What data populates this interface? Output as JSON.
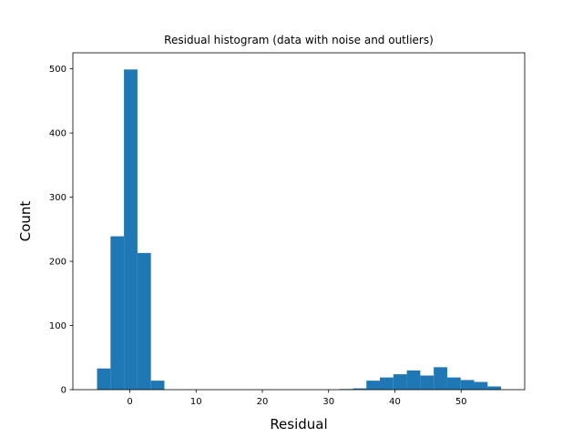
{
  "chart_data": {
    "type": "bar",
    "subtype": "histogram",
    "title": "Residual histogram (data with noise and outliers)",
    "xlabel": "Residual",
    "ylabel": "Count",
    "xlim": [
      -8.6,
      59.6
    ],
    "ylim": [
      0,
      525
    ],
    "xticks": [
      0,
      10,
      20,
      30,
      40,
      50
    ],
    "yticks": [
      0,
      100,
      200,
      300,
      400,
      500
    ],
    "grid": false,
    "color": "#1f77b4",
    "bin_edges": [
      -4.952,
      -2.919,
      -0.886,
      1.147,
      3.18,
      5.213,
      7.246,
      9.279,
      11.312,
      13.345,
      15.378,
      17.411,
      19.444,
      21.477,
      23.51,
      25.543,
      27.576,
      29.609,
      31.642,
      33.675,
      35.708,
      37.741,
      39.774,
      41.807,
      43.84,
      45.873,
      47.906,
      49.939,
      51.972,
      54.005,
      56.038
    ],
    "counts": [
      33,
      239,
      499,
      213,
      14,
      0,
      0,
      0,
      0,
      0,
      0,
      0,
      0,
      0,
      0,
      0,
      0,
      0,
      1,
      2,
      14,
      19,
      24,
      30,
      22,
      35,
      19,
      15,
      12,
      5
    ]
  }
}
